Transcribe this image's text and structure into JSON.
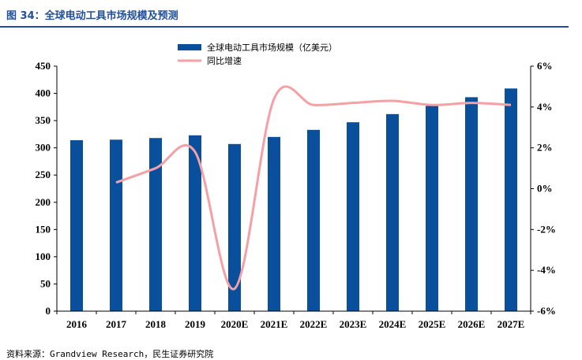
{
  "figure": {
    "title": "图 34：全球电动工具市场规模及预测",
    "source": "资料来源：Grandview Research，民生证券研究院"
  },
  "chart_data": {
    "type": "bar",
    "categories": [
      "2016",
      "2017",
      "2018",
      "2019",
      "2020E",
      "2021E",
      "2022E",
      "2023E",
      "2024E",
      "2025E",
      "2026E",
      "2027E"
    ],
    "series": [
      {
        "name": "全球电动工具市场规模（亿美元）",
        "type": "bar",
        "axis": "left",
        "color": "#0a4f9c",
        "values": [
          314,
          315,
          318,
          323,
          307,
          320,
          333,
          347,
          362,
          377,
          393,
          409
        ]
      },
      {
        "name": "同比增速",
        "type": "line",
        "axis": "right",
        "color": "#f4a0a4",
        "values": [
          null,
          0.3,
          1.0,
          1.8,
          -4.9,
          4.4,
          4.1,
          4.2,
          4.3,
          4.1,
          4.2,
          4.1
        ]
      }
    ],
    "ylim_left": [
      0,
      450
    ],
    "yticks_left": [
      "0",
      "50",
      "100",
      "150",
      "200",
      "250",
      "300",
      "350",
      "400",
      "450"
    ],
    "ylim_right": [
      -6,
      6
    ],
    "yticks_right": [
      "-6%",
      "-4%",
      "-2%",
      "0%",
      "2%",
      "4%",
      "6%"
    ],
    "grid": false,
    "legend_position": "top-center"
  }
}
